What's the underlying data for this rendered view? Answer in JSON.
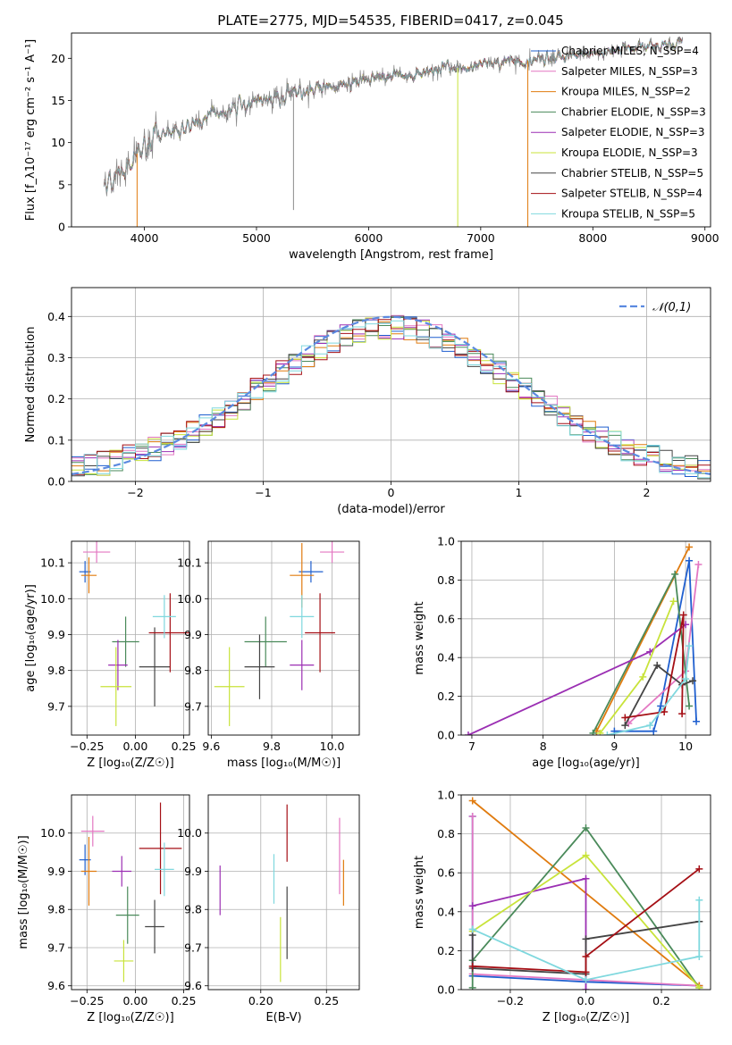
{
  "figure": {
    "title": "PLATE=2775, MJD=54535, FIBERID=0417, z=0.045"
  },
  "chart_data": [
    {
      "id": "spectrum",
      "type": "line",
      "xlabel": "wavelength [Angstrom, rest frame]",
      "ylabel": "Flux [f_λ10⁻¹⁷ erg cm⁻² s⁻¹ A⁻¹]",
      "xlim": [
        3350,
        9050
      ],
      "ylim": [
        0,
        23
      ],
      "xticks": [
        4000,
        5000,
        6000,
        7000,
        8000,
        9000
      ],
      "yticks": [
        0,
        5,
        10,
        15,
        20
      ],
      "grid": false,
      "legend": "top-right",
      "continuum": {
        "x": [
          3650,
          3800,
          4000,
          4200,
          4500,
          4800,
          5100,
          5400,
          5700,
          6000,
          6300,
          6600,
          6900,
          7200,
          7500,
          7800,
          8100,
          8400,
          8800
        ],
        "y": [
          5.0,
          7.0,
          9.5,
          11.0,
          12.5,
          14.0,
          15.3,
          16.0,
          16.6,
          17.5,
          18.0,
          18.6,
          19.0,
          19.5,
          19.8,
          20.3,
          20.8,
          21.3,
          22.0
        ]
      },
      "series": [
        {
          "name": "Chabrier MILES, N_SSP=4",
          "color": "#1f5fcf"
        },
        {
          "name": "Salpeter MILES, N_SSP=3",
          "color": "#e377c2"
        },
        {
          "name": "Kroupa MILES, N_SSP=2",
          "color": "#e07b0f"
        },
        {
          "name": "Chabrier ELODIE, N_SSP=3",
          "color": "#4a8a5a"
        },
        {
          "name": "Salpeter ELODIE, N_SSP=3",
          "color": "#9b2fb3"
        },
        {
          "name": "Kroupa ELODIE, N_SSP=3",
          "color": "#c8e33a"
        },
        {
          "name": "Chabrier STELIB, N_SSP=5",
          "color": "#444444"
        },
        {
          "name": "Salpeter STELIB, N_SSP=4",
          "color": "#a50f15"
        },
        {
          "name": "Kroupa STELIB, N_SSP=5",
          "color": "#7fd8de"
        }
      ]
    },
    {
      "id": "residuals",
      "type": "line",
      "xlabel": "(data-model)/error",
      "ylabel": "Normed distribution",
      "xlim": [
        -2.5,
        2.5
      ],
      "ylim": [
        0,
        0.47
      ],
      "xticks": [
        -2,
        -1,
        0,
        1,
        2
      ],
      "yticks": [
        0.0,
        0.1,
        0.2,
        0.3,
        0.4
      ],
      "grid": true,
      "legend": "top-right",
      "reference": {
        "name": "𝒩(0,1)",
        "color": "#5b8ae0"
      },
      "histogram_bins": {
        "start": -2.5,
        "width": 0.1,
        "count": 50
      }
    },
    {
      "id": "age-vs-Z",
      "type": "scatter",
      "xlabel": "Z [log₁₀(Z/Z☉)]",
      "ylabel": "age  [log₁₀(age/yr)]",
      "xlim": [
        -0.33,
        0.28
      ],
      "ylim": [
        9.62,
        10.16
      ],
      "xticks": [
        -0.25,
        0.0,
        0.25
      ],
      "xticklabels": [
        "−0.25",
        "0.00",
        "0.25"
      ],
      "yticks": [
        9.7,
        9.8,
        9.9,
        10.0,
        10.1
      ],
      "grid": true,
      "points": [
        {
          "x": -0.26,
          "y": 10.075,
          "xerr": 0.03,
          "yerr": 0.03,
          "color": "#1f5fcf"
        },
        {
          "x": -0.2,
          "y": 10.13,
          "xerr": 0.07,
          "yerr": 0.03,
          "color": "#e377c2"
        },
        {
          "x": -0.24,
          "y": 10.065,
          "xerr": 0.04,
          "yerr": 0.05,
          "color": "#e07b0f"
        },
        {
          "x": -0.05,
          "y": 9.88,
          "xerr": 0.07,
          "yerr": 0.07,
          "color": "#4a8a5a"
        },
        {
          "x": -0.09,
          "y": 9.815,
          "xerr": 0.05,
          "yerr": 0.07,
          "color": "#9b2fb3"
        },
        {
          "x": -0.1,
          "y": 9.755,
          "xerr": 0.08,
          "yerr": 0.11,
          "color": "#c8e33a"
        },
        {
          "x": 0.1,
          "y": 9.81,
          "xerr": 0.08,
          "yerr": 0.11,
          "color": "#444444"
        },
        {
          "x": 0.18,
          "y": 9.905,
          "xerr": 0.11,
          "yerr": 0.11,
          "color": "#a50f15"
        },
        {
          "x": 0.15,
          "y": 9.95,
          "xerr": 0.06,
          "yerr": 0.06,
          "color": "#7fd8de"
        }
      ]
    },
    {
      "id": "age-vs-mass",
      "type": "scatter",
      "xlabel": "mass [log₁₀(M/M☉)]",
      "ylabel": "",
      "xlim": [
        9.59,
        10.09
      ],
      "ylim": [
        9.62,
        10.16
      ],
      "xticks": [
        9.6,
        9.8,
        10.0
      ],
      "xticklabels": [
        "9.6",
        "9.8",
        "10.0"
      ],
      "yticks": [
        9.7,
        9.8,
        9.9,
        10.0,
        10.1
      ],
      "grid": true,
      "points": [
        {
          "x": 9.93,
          "y": 10.075,
          "xerr": 0.04,
          "yerr": 0.03,
          "color": "#1f5fcf"
        },
        {
          "x": 10.0,
          "y": 10.13,
          "xerr": 0.04,
          "yerr": 0.03,
          "color": "#e377c2"
        },
        {
          "x": 9.9,
          "y": 10.065,
          "xerr": 0.04,
          "yerr": 0.09,
          "color": "#e07b0f"
        },
        {
          "x": 9.78,
          "y": 9.88,
          "xerr": 0.07,
          "yerr": 0.07,
          "color": "#4a8a5a"
        },
        {
          "x": 9.9,
          "y": 9.815,
          "xerr": 0.04,
          "yerr": 0.07,
          "color": "#9b2fb3"
        },
        {
          "x": 9.66,
          "y": 9.755,
          "xerr": 0.05,
          "yerr": 0.11,
          "color": "#c8e33a"
        },
        {
          "x": 9.76,
          "y": 9.81,
          "xerr": 0.05,
          "yerr": 0.09,
          "color": "#444444"
        },
        {
          "x": 9.96,
          "y": 9.905,
          "xerr": 0.05,
          "yerr": 0.11,
          "color": "#a50f15"
        },
        {
          "x": 9.9,
          "y": 9.95,
          "xerr": 0.04,
          "yerr": 0.06,
          "color": "#7fd8de"
        }
      ]
    },
    {
      "id": "weight-vs-age",
      "type": "line",
      "xlabel": "age  [log₁₀(age/yr)]",
      "ylabel": "mass weight",
      "xlim": [
        6.85,
        10.35
      ],
      "ylim": [
        0,
        1.0
      ],
      "xticks": [
        7,
        8,
        9,
        10
      ],
      "xticklabels": [
        "7",
        "8",
        "9",
        "10"
      ],
      "yticks": [
        0.0,
        0.2,
        0.4,
        0.6,
        0.8,
        1.0
      ],
      "yticklabels": [
        "0.0",
        "0.2",
        "0.4",
        "0.6",
        "0.8",
        "1.0"
      ],
      "grid": true,
      "series": [
        {
          "color": "#1f5fcf",
          "x": [
            9.0,
            9.55,
            9.65,
            10.05,
            10.15
          ],
          "y": [
            0.02,
            0.02,
            0.15,
            0.9,
            0.07
          ]
        },
        {
          "color": "#e377c2",
          "x": [
            9.2,
            10.0,
            10.18
          ],
          "y": [
            0.06,
            0.33,
            0.88
          ]
        },
        {
          "color": "#e07b0f",
          "x": [
            8.75,
            10.05
          ],
          "y": [
            0.02,
            0.97
          ]
        },
        {
          "color": "#4a8a5a",
          "x": [
            8.7,
            9.85,
            10.05
          ],
          "y": [
            0.01,
            0.83,
            0.15
          ]
        },
        {
          "color": "#9b2fb3",
          "x": [
            6.95,
            9.5,
            10.0
          ],
          "y": [
            0.0,
            0.43,
            0.57
          ]
        },
        {
          "color": "#c8e33a",
          "x": [
            8.8,
            9.4,
            9.83
          ],
          "y": [
            0.01,
            0.3,
            0.69
          ]
        },
        {
          "color": "#444444",
          "x": [
            9.15,
            9.6,
            9.95,
            10.1
          ],
          "y": [
            0.05,
            0.36,
            0.26,
            0.28
          ]
        },
        {
          "color": "#a50f15",
          "x": [
            9.15,
            9.7,
            9.97,
            9.95
          ],
          "y": [
            0.09,
            0.12,
            0.62,
            0.11
          ]
        },
        {
          "color": "#7fd8de",
          "x": [
            8.9,
            9.5,
            10.0,
            10.05
          ],
          "y": [
            0.0,
            0.05,
            0.29,
            0.46
          ]
        }
      ]
    },
    {
      "id": "mass-vs-Z",
      "type": "scatter",
      "xlabel": "Z [log₁₀(Z/Z☉)]",
      "ylabel": "mass [log₁₀(M/M☉)]",
      "xlim": [
        -0.33,
        0.28
      ],
      "ylim": [
        9.59,
        10.1
      ],
      "xticks": [
        -0.25,
        0.0,
        0.25
      ],
      "xticklabels": [
        "−0.25",
        "0.00",
        "0.25"
      ],
      "yticks": [
        9.6,
        9.7,
        9.8,
        9.9,
        10.0
      ],
      "yticklabels": [
        "9.6",
        "9.7",
        "9.8",
        "9.9",
        "10.0"
      ],
      "grid": true,
      "points": [
        {
          "x": -0.26,
          "y": 9.93,
          "xerr": 0.03,
          "yerr": 0.04,
          "color": "#1f5fcf"
        },
        {
          "x": -0.22,
          "y": 10.005,
          "xerr": 0.06,
          "yerr": 0.04,
          "color": "#e377c2"
        },
        {
          "x": -0.24,
          "y": 9.9,
          "xerr": 0.04,
          "yerr": 0.09,
          "color": "#e07b0f"
        },
        {
          "x": -0.04,
          "y": 9.785,
          "xerr": 0.06,
          "yerr": 0.075,
          "color": "#4a8a5a"
        },
        {
          "x": -0.07,
          "y": 9.9,
          "xerr": 0.05,
          "yerr": 0.04,
          "color": "#9b2fb3"
        },
        {
          "x": -0.06,
          "y": 9.665,
          "xerr": 0.05,
          "yerr": 0.055,
          "color": "#c8e33a"
        },
        {
          "x": 0.1,
          "y": 9.755,
          "xerr": 0.05,
          "yerr": 0.07,
          "color": "#444444"
        },
        {
          "x": 0.13,
          "y": 9.96,
          "xerr": 0.11,
          "yerr": 0.12,
          "color": "#a50f15"
        },
        {
          "x": 0.15,
          "y": 9.905,
          "xerr": 0.05,
          "yerr": 0.07,
          "color": "#7fd8de"
        }
      ]
    },
    {
      "id": "mass-vs-ebv",
      "type": "scatter",
      "xlabel": "E(B-V)",
      "ylabel": "",
      "xlim": [
        0.16,
        0.275
      ],
      "ylim": [
        9.59,
        10.1
      ],
      "xticks": [
        0.2,
        0.25
      ],
      "xticklabels": [
        "0.20",
        "0.25"
      ],
      "yticks": [
        9.6,
        9.7,
        9.8,
        9.9,
        10.0
      ],
      "yticklabels": [
        "9.6",
        "9.7",
        "9.8",
        "9.9",
        "10.0"
      ],
      "grid": true,
      "points": [
        {
          "x": 0.169,
          "y": 9.85,
          "xerr": 0.0,
          "yerr": 0.065,
          "color": "#9b2fb3"
        },
        {
          "x": 0.21,
          "y": 9.88,
          "xerr": 0.0,
          "yerr": 0.065,
          "color": "#7fd8de"
        },
        {
          "x": 0.215,
          "y": 9.695,
          "xerr": 0.0,
          "yerr": 0.085,
          "color": "#c8e33a"
        },
        {
          "x": 0.22,
          "y": 9.765,
          "xerr": 0.0,
          "yerr": 0.095,
          "color": "#444444"
        },
        {
          "x": 0.22,
          "y": 10.0,
          "xerr": 0.0,
          "yerr": 0.075,
          "color": "#a50f15"
        },
        {
          "x": 0.26,
          "y": 9.94,
          "xerr": 0.0,
          "yerr": 0.1,
          "color": "#e377c2"
        },
        {
          "x": 0.263,
          "y": 9.87,
          "xerr": 0.0,
          "yerr": 0.06,
          "color": "#e07b0f"
        }
      ]
    },
    {
      "id": "weight-vs-Z",
      "type": "line",
      "xlabel": "Z [log₁₀(Z/Z☉)]",
      "ylabel": "mass weight",
      "xlim": [
        -0.33,
        0.33
      ],
      "ylim": [
        0,
        1.0
      ],
      "xticks": [
        -0.2,
        0.0,
        0.2
      ],
      "xticklabels": [
        "−0.2",
        "0.0",
        "0.2"
      ],
      "yticks": [
        0.0,
        0.2,
        0.4,
        0.6,
        0.8,
        1.0
      ],
      "yticklabels": [
        "0.0",
        "0.2",
        "0.4",
        "0.6",
        "0.8",
        "1.0"
      ],
      "grid": true,
      "series": [
        {
          "color": "#1f5fcf",
          "x": [
            -0.3,
            -0.3,
            0.0,
            0.3
          ],
          "y": [
            0.89,
            0.07,
            0.04,
            0.02
          ]
        },
        {
          "color": "#e377c2",
          "x": [
            -0.3,
            -0.3,
            0.3
          ],
          "y": [
            0.89,
            0.08,
            0.02
          ]
        },
        {
          "color": "#e07b0f",
          "x": [
            -0.3,
            0.3
          ],
          "y": [
            0.97,
            0.02
          ]
        },
        {
          "color": "#4a8a5a",
          "x": [
            -0.3,
            -0.3,
            0.0,
            0.3
          ],
          "y": [
            0.01,
            0.15,
            0.83,
            0.01
          ]
        },
        {
          "color": "#9b2fb3",
          "x": [
            -0.3,
            0.0,
            0.0
          ],
          "y": [
            0.43,
            0.57,
            0.0
          ]
        },
        {
          "color": "#c8e33a",
          "x": [
            -0.3,
            0.0,
            0.3
          ],
          "y": [
            0.3,
            0.69,
            0.01
          ]
        },
        {
          "color": "#444444",
          "x": [
            -0.3,
            -0.3,
            0.0,
            0.0,
            0.3
          ],
          "y": [
            0.28,
            0.11,
            0.08,
            0.26,
            0.35
          ]
        },
        {
          "color": "#a50f15",
          "x": [
            -0.3,
            0.0,
            0.0,
            0.3
          ],
          "y": [
            0.12,
            0.09,
            0.17,
            0.62
          ]
        },
        {
          "color": "#7fd8de",
          "x": [
            -0.3,
            0.0,
            0.3,
            0.3
          ],
          "y": [
            0.31,
            0.05,
            0.17,
            0.46
          ]
        }
      ]
    }
  ]
}
